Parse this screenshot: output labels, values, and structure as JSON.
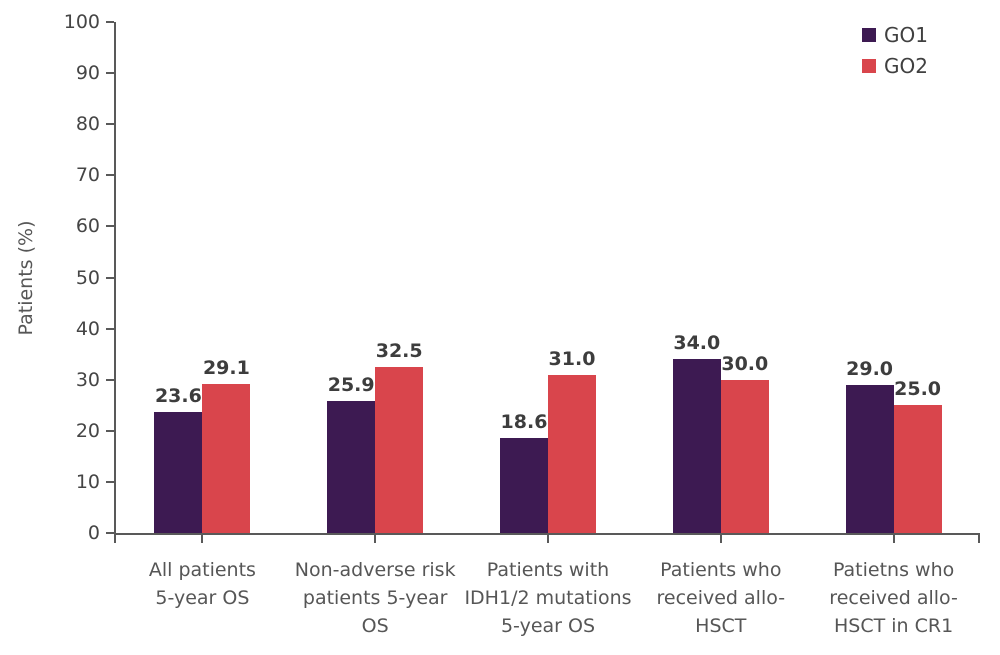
{
  "chart_data": {
    "type": "bar",
    "title": "",
    "ylabel": "Patients (%)",
    "xlabel": "",
    "ylim": [
      0,
      100
    ],
    "yticks": [
      "0",
      "10",
      "20",
      "30",
      "40",
      "50",
      "60",
      "70",
      "80",
      "90",
      "100"
    ],
    "grid": false,
    "legend_position": "top-right",
    "categories": [
      "All patients 5-year OS",
      "Non-adverse risk patients 5-year OS",
      "Patients with IDH1/2 mutations 5-year OS",
      "Patients who received allo-HSCT",
      "Patietns who received allo-HSCT in CR1"
    ],
    "category_display": [
      "All patients\n5-year OS",
      "Non-adverse risk\npatients 5-year\nOS",
      "Patients with\nIDH1/2 mutations\n5-year OS",
      "Patients who\nreceived allo-\nHSCT",
      "Patietns who\nreceived allo-\nHSCT in CR1"
    ],
    "series": [
      {
        "name": "GO1",
        "color": "#3d1a52",
        "values": [
          23.6,
          25.9,
          18.6,
          34.0,
          29.0
        ],
        "labels": [
          "23.6",
          "25.9",
          "18.6",
          "34.0",
          "29.0"
        ]
      },
      {
        "name": "GO2",
        "color": "#d9454c",
        "values": [
          29.1,
          32.5,
          31.0,
          30.0,
          25.0
        ],
        "labels": [
          "29.1",
          "32.5",
          "31.0",
          "30.0",
          "25.0"
        ]
      }
    ],
    "colors": {
      "axis": "#595959",
      "tick_label": "#454545",
      "value_label": "#3d3d3d",
      "category_label": "#565656"
    }
  }
}
